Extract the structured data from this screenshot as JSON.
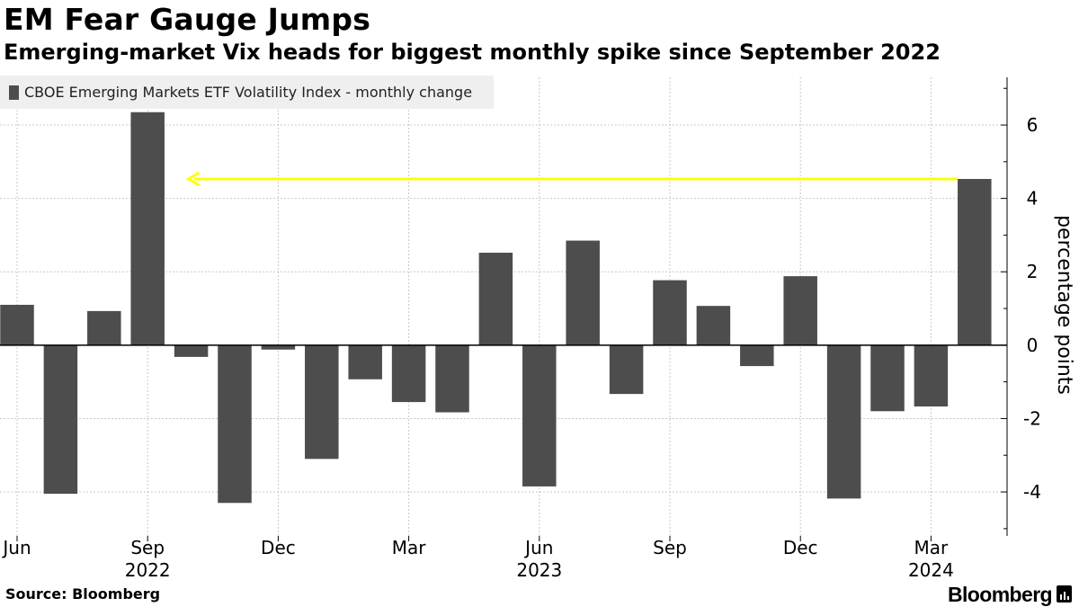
{
  "header": {
    "title": "EM Fear Gauge Jumps",
    "subtitle": "Emerging-market Vix heads for biggest monthly spike since September 2022"
  },
  "legend": {
    "label": "CBOE Emerging Markets ETF Volatility Index - monthly change",
    "color": "#4d4d4d"
  },
  "footer": {
    "source": "Source: Bloomberg",
    "brand": "Bloomberg"
  },
  "chart_data": {
    "type": "bar",
    "title": "EM Fear Gauge Jumps",
    "subtitle": "Emerging-market Vix heads for biggest monthly spike since September 2022",
    "ylabel": "percentage points",
    "xlabel": "",
    "categories": [
      "2022-06",
      "2022-07",
      "2022-08",
      "2022-09",
      "2022-10",
      "2022-11",
      "2022-12",
      "2023-01",
      "2023-02",
      "2023-03",
      "2023-04",
      "2023-05",
      "2023-06",
      "2023-07",
      "2023-08",
      "2023-09",
      "2023-10",
      "2023-11",
      "2023-12",
      "2024-01",
      "2024-02",
      "2024-03",
      "2024-04"
    ],
    "series": [
      {
        "name": "CBOE Emerging Markets ETF Volatility Index - monthly change",
        "values": [
          1.1,
          -4.05,
          0.93,
          6.35,
          -0.32,
          -4.3,
          -0.12,
          -3.1,
          -0.93,
          -1.55,
          -1.83,
          2.52,
          -3.85,
          2.85,
          -1.33,
          1.77,
          1.07,
          -0.57,
          1.88,
          -4.18,
          -1.8,
          -1.67,
          4.53
        ]
      }
    ],
    "ylim": [
      -5.2,
      7.3
    ],
    "yticks": [
      6,
      4,
      2,
      0,
      -2,
      -4
    ],
    "ytick_labels": [
      "6",
      "4",
      "2",
      "0",
      "-2",
      "-4"
    ],
    "axis_side": "right",
    "xticks": [
      {
        "category": "2022-06",
        "label": "Jun",
        "year": ""
      },
      {
        "category": "2022-09",
        "label": "Sep",
        "year": "2022"
      },
      {
        "category": "2022-12",
        "label": "Dec",
        "year": ""
      },
      {
        "category": "2023-03",
        "label": "Mar",
        "year": ""
      },
      {
        "category": "2023-06",
        "label": "Jun",
        "year": "2023"
      },
      {
        "category": "2023-09",
        "label": "Sep",
        "year": ""
      },
      {
        "category": "2023-12",
        "label": "Dec",
        "year": ""
      },
      {
        "category": "2024-03",
        "label": "Mar",
        "year": "2024"
      }
    ],
    "annotation": {
      "type": "arrow",
      "value": 4.53,
      "from_category": "2024-04",
      "to_category": "2022-10",
      "color": "#ffff00"
    },
    "grid": true,
    "legend_position": "top-left",
    "colors": {
      "bar": "#4d4d4d",
      "grid": "#c8c8c8",
      "zero_line": "#000000"
    }
  }
}
